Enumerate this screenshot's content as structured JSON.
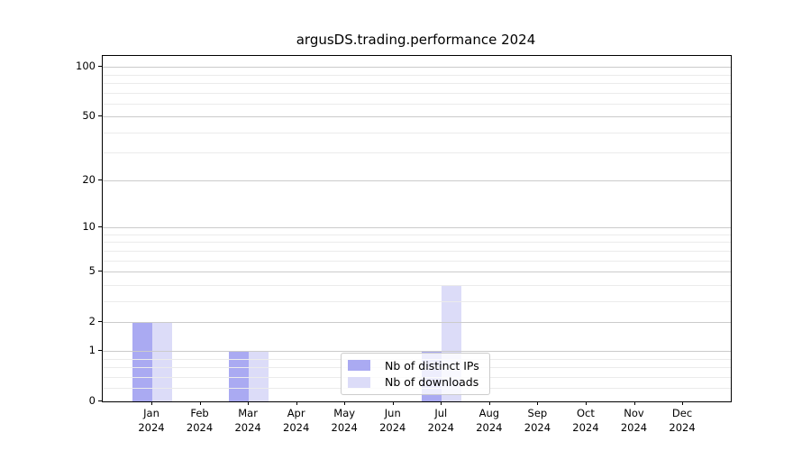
{
  "title": "argusDS.trading.performance 2024",
  "chart_data": {
    "type": "bar",
    "title": "argusDS.trading.performance 2024",
    "x_months": [
      "Jan",
      "Feb",
      "Mar",
      "Apr",
      "May",
      "Jun",
      "Jul",
      "Aug",
      "Sep",
      "Oct",
      "Nov",
      "Dec"
    ],
    "x_year": "2024",
    "series": [
      {
        "name": "Nb of distinct IPs",
        "color": "#aaaaf2",
        "values": [
          2,
          0,
          1,
          0,
          0,
          0,
          1,
          0,
          0,
          0,
          0,
          0
        ]
      },
      {
        "name": "Nb of downloads",
        "color": "#dcdcf8",
        "values": [
          2,
          0,
          1,
          0,
          0,
          0,
          4,
          0,
          0,
          0,
          0,
          0
        ]
      }
    ],
    "yscale": "log1p",
    "ylim": [
      0,
      115
    ],
    "y_major_ticks": [
      0,
      1,
      2,
      5,
      10,
      20,
      50,
      100
    ],
    "y_minor_ticks": [
      0.2,
      0.4,
      0.6,
      0.8,
      3,
      4,
      6,
      7,
      8,
      9,
      30,
      40,
      60,
      70,
      80,
      90
    ],
    "grid": "on",
    "legend_position": "lower center",
    "colors": {
      "major_grid": "#cbcbcb",
      "minor_grid": "#ebebeb",
      "spine": "#000000",
      "legend_border": "#cccccc"
    }
  }
}
